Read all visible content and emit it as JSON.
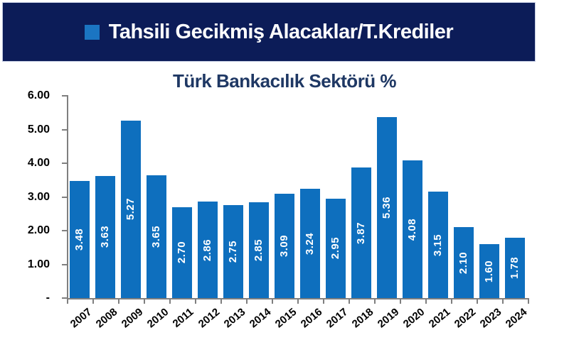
{
  "banner": {
    "title": "Tahsili Gecikmiş Alacaklar/T.Krediler"
  },
  "colors": {
    "banner_bg": "#0c1c58",
    "banner_border": "#c3cbe2",
    "legend_square": "#1b75c2",
    "title_color": "#1f3864",
    "bar_color": "#0e6fbe",
    "axis_color": "#7f7f7f",
    "value_label_color": "#ffffff",
    "axis_text_color": "#000000",
    "background": "#ffffff"
  },
  "chart_data": {
    "type": "bar",
    "title": "Türk Bankacılık Sektörü %",
    "categories": [
      "2007",
      "2008",
      "2009",
      "2010",
      "2011",
      "2012",
      "2013",
      "2014",
      "2015",
      "2016",
      "2017",
      "2018",
      "2019",
      "2020",
      "2021",
      "2022",
      "2023",
      "2024"
    ],
    "values": [
      3.48,
      3.63,
      5.27,
      3.65,
      2.7,
      2.86,
      2.75,
      2.85,
      3.09,
      3.24,
      2.95,
      3.87,
      5.36,
      4.08,
      3.15,
      2.1,
      1.6,
      1.78
    ],
    "value_labels": [
      "3.48",
      "3.63",
      "5.27",
      "3.65",
      "2.70",
      "2.86",
      "2.75",
      "2.85",
      "3.09",
      "3.24",
      "2.95",
      "3.87",
      "5.36",
      "4.08",
      "3.15",
      "2.10",
      "1.60",
      "1.78"
    ],
    "xlabel": "",
    "ylabel": "",
    "ylim": [
      0,
      6
    ],
    "yticks": [
      {
        "value": 6,
        "label": "6.00"
      },
      {
        "value": 5,
        "label": "5.00"
      },
      {
        "value": 4,
        "label": "4.00"
      },
      {
        "value": 3,
        "label": "3.00"
      },
      {
        "value": 2,
        "label": "2.00"
      },
      {
        "value": 1,
        "label": "1.00"
      },
      {
        "value": 0,
        "label": "-"
      }
    ],
    "grid": false,
    "legend_position": "none",
    "value_labels_rotated": true,
    "x_labels_rotated": true
  }
}
